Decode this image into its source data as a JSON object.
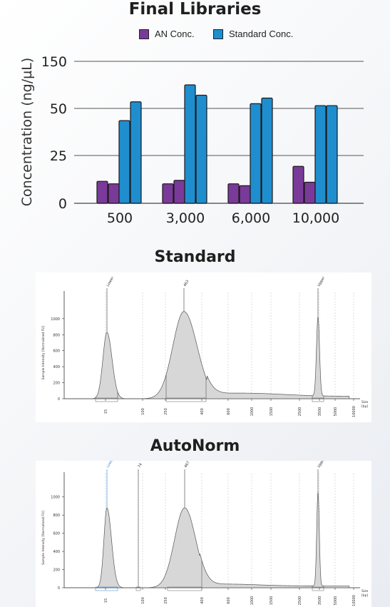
{
  "chart_data": [
    {
      "type": "bar",
      "title": "Final Libraries",
      "ylabel": "Concentration (ng/µL)",
      "xlabel": "",
      "categories": [
        "500",
        "3,000",
        "6,000",
        "10,000"
      ],
      "y_ticks": [
        "0",
        "25",
        "50",
        "150"
      ],
      "legend": "top",
      "grid": true,
      "series": [
        {
          "name": "AN Conc.",
          "color": "#7a3a99",
          "values": [
            [
              11.5,
              10.2
            ],
            [
              10.2,
              12.0
            ],
            [
              10.2,
              9.2
            ],
            [
              19.3,
              11.0
            ]
          ]
        },
        {
          "name": "Standard Conc.",
          "color": "#1f8ecf",
          "values": [
            [
              43.5,
              53.5
            ],
            [
              62.5,
              57.0
            ],
            [
              52.5,
              55.5
            ],
            [
              51.5,
              51.5
            ]
          ]
        }
      ]
    },
    {
      "type": "area",
      "title": "Standard",
      "ylabel": "Sample Intensity [Normalized FU]",
      "xlabel": "Size [bp]",
      "x_ticks": [
        "15",
        "100",
        "250",
        "400",
        "600",
        "1000",
        "1500",
        "2500",
        "3500",
        "5000",
        "10000"
      ],
      "y_ticks": [
        "0",
        "200",
        "400",
        "600",
        "800",
        "1000"
      ],
      "ylim": [
        0,
        1150
      ],
      "peaks": [
        {
          "label": "Lower",
          "size": "15",
          "height": 830
        },
        {
          "label": "463",
          "size": "463",
          "height": 1100
        },
        {
          "label": "Upper",
          "size": "10000",
          "height": 990
        }
      ]
    },
    {
      "type": "area",
      "title": "AutoNorm",
      "ylabel": "Sample Intensity [Normalized FU]",
      "xlabel": "Size [bp]",
      "x_ticks": [
        "15",
        "100",
        "250",
        "400",
        "600",
        "1000",
        "1500",
        "2500",
        "3500",
        "5000",
        "10000"
      ],
      "y_ticks": [
        "0",
        "200",
        "400",
        "600",
        "800",
        "1000"
      ],
      "ylim": [
        0,
        1100
      ],
      "peaks": [
        {
          "label": "Lower",
          "size": "15",
          "height": 880
        },
        {
          "label": "74",
          "size": "74",
          "height": 0
        },
        {
          "label": "467",
          "size": "467",
          "height": 880
        },
        {
          "label": "Upper",
          "size": "10000",
          "height": 1040
        }
      ]
    }
  ]
}
